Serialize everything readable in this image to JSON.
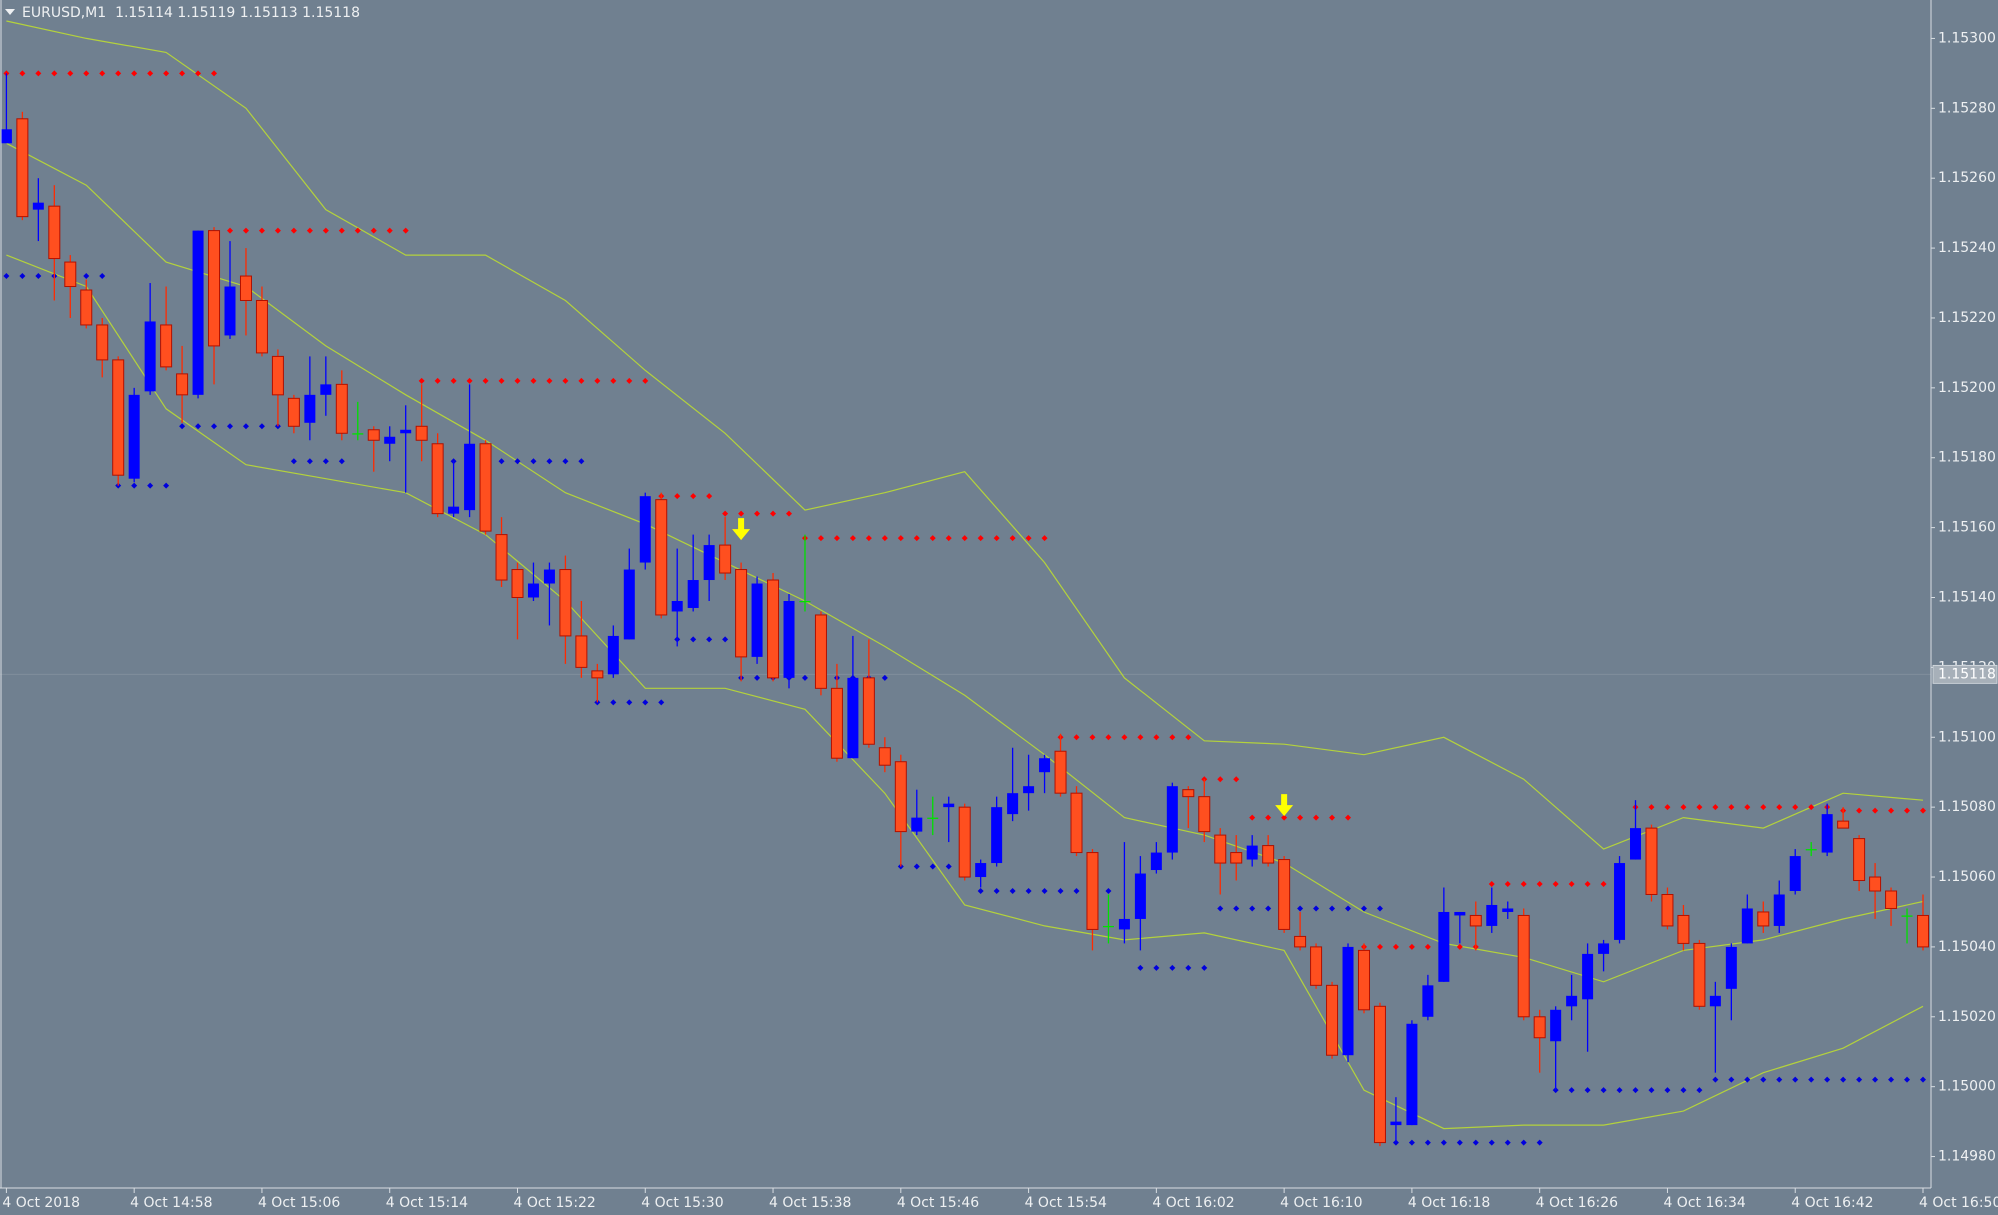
{
  "chart_data": {
    "type": "candlestick",
    "title": "EURUSD,M1  1.15114 1.15119 1.15113 1.15118",
    "xlim": [
      0,
      120
    ],
    "xticks": [
      {
        "value": 0,
        "label": "4 Oct 2018"
      },
      {
        "value": 8,
        "label": "4 Oct 14:58"
      },
      {
        "value": 16,
        "label": "4 Oct 15:06"
      },
      {
        "value": 24,
        "label": "4 Oct 15:14"
      },
      {
        "value": 32,
        "label": "4 Oct 15:22"
      },
      {
        "value": 40,
        "label": "4 Oct 15:30"
      },
      {
        "value": 48,
        "label": "4 Oct 15:38"
      },
      {
        "value": 56,
        "label": "4 Oct 15:46"
      },
      {
        "value": 64,
        "label": "4 Oct 15:54"
      },
      {
        "value": 72,
        "label": "4 Oct 16:02"
      },
      {
        "value": 80,
        "label": "4 Oct 16:10"
      },
      {
        "value": 88,
        "label": "4 Oct 16:18"
      },
      {
        "value": 96,
        "label": "4 Oct 16:26"
      },
      {
        "value": 104,
        "label": "4 Oct 16:34"
      },
      {
        "value": 112,
        "label": "4 Oct 16:42"
      },
      {
        "value": 120,
        "label": "4 Oct 16:50"
      }
    ],
    "ylim": [
      1.14971,
      1.15311
    ],
    "yticks": [
      {
        "value": 1.153,
        "label": "1.15300"
      },
      {
        "value": 1.1528,
        "label": "1.15280"
      },
      {
        "value": 1.1526,
        "label": "1.15260"
      },
      {
        "value": 1.1524,
        "label": "1.15240"
      },
      {
        "value": 1.1522,
        "label": "1.15220"
      },
      {
        "value": 1.152,
        "label": "1.15200"
      },
      {
        "value": 1.1518,
        "label": "1.15180"
      },
      {
        "value": 1.1516,
        "label": "1.15160"
      },
      {
        "value": 1.1514,
        "label": "1.15140"
      },
      {
        "value": 1.1512,
        "label": "1.15120"
      },
      {
        "value": 1.151,
        "label": "1.15100"
      },
      {
        "value": 1.1508,
        "label": "1.15080"
      },
      {
        "value": 1.1506,
        "label": "1.15060"
      },
      {
        "value": 1.1504,
        "label": "1.15040"
      },
      {
        "value": 1.1502,
        "label": "1.15020"
      },
      {
        "value": 1.15,
        "label": "1.15000"
      },
      {
        "value": 1.1498,
        "label": "1.14980"
      }
    ],
    "last_price": 1.15118,
    "up_color": "#0000ff",
    "down_color": "#ff4f1f",
    "doji_color": "#00e000",
    "open": [
      1.1527,
      1.15277,
      1.15251,
      1.15252,
      1.15236,
      1.15228,
      1.15218,
      1.15208,
      1.15174,
      1.15199,
      1.15218,
      1.15204,
      1.15198,
      1.15245,
      1.15215,
      1.15232,
      1.15225,
      1.15209,
      1.15197,
      1.1519,
      1.15198,
      1.15201,
      1.15187,
      1.15188,
      1.15184,
      1.15187,
      1.15189,
      1.15184,
      1.15164,
      1.15165,
      1.15184,
      1.15158,
      1.15148,
      1.1514,
      1.15144,
      1.15148,
      1.15129,
      1.15119,
      1.15118,
      1.15128,
      1.1515,
      1.15168,
      1.15136,
      1.15137,
      1.15145,
      1.15155,
      1.15148,
      1.15123,
      1.15145,
      1.15117,
      1.15139,
      1.15135,
      1.15114,
      1.15094,
      1.15117,
      1.15097,
      1.15093,
      1.15073,
      1.15077,
      1.1508,
      1.1508,
      1.1506,
      1.15064,
      1.15078,
      1.15084,
      1.1509,
      1.15096,
      1.15084,
      1.15067,
      1.15046,
      1.15045,
      1.15048,
      1.15062,
      1.15067,
      1.15085,
      1.15083,
      1.15072,
      1.15067,
      1.15065,
      1.15069,
      1.15065,
      1.15043,
      1.1504,
      1.15029,
      1.15009,
      1.15039,
      1.15023,
      1.14989,
      1.14989,
      1.1502,
      1.1503,
      1.15049,
      1.15049,
      1.15046,
      1.1505,
      1.15049,
      1.1502,
      1.15013,
      1.15023,
      1.15025,
      1.15038,
      1.15042,
      1.15065,
      1.15074,
      1.15055,
      1.15049,
      1.15041,
      1.15023,
      1.15028,
      1.15041,
      1.1505,
      1.15046,
      1.15056,
      1.15068,
      1.15067,
      1.15076,
      1.15071,
      1.1506,
      1.15056,
      1.15049,
      1.15049
    ],
    "high": [
      1.1529,
      1.15279,
      1.1526,
      1.15258,
      1.15238,
      1.15231,
      1.1522,
      1.15209,
      1.152,
      1.1523,
      1.15229,
      1.15212,
      1.15245,
      1.15246,
      1.15242,
      1.1524,
      1.15229,
      1.15211,
      1.15198,
      1.15209,
      1.15209,
      1.15205,
      1.15196,
      1.15189,
      1.15189,
      1.15195,
      1.15201,
      1.15187,
      1.15179,
      1.15201,
      1.15185,
      1.15163,
      1.1515,
      1.1515,
      1.1515,
      1.15152,
      1.15139,
      1.15121,
      1.15132,
      1.15154,
      1.1517,
      1.1517,
      1.15154,
      1.15158,
      1.15158,
      1.15163,
      1.1515,
      1.15146,
      1.15147,
      1.15141,
      1.15158,
      1.15136,
      1.15121,
      1.15129,
      1.15128,
      1.151,
      1.15095,
      1.15085,
      1.15083,
      1.15083,
      1.15081,
      1.15065,
      1.15083,
      1.15097,
      1.15095,
      1.15095,
      1.15101,
      1.15086,
      1.15068,
      1.15055,
      1.1507,
      1.15066,
      1.1507,
      1.15087,
      1.15086,
      1.15088,
      1.15074,
      1.15072,
      1.15072,
      1.15072,
      1.15066,
      1.1505,
      1.15041,
      1.1503,
      1.15041,
      1.15041,
      1.15024,
      1.14997,
      1.15019,
      1.15032,
      1.15057,
      1.1505,
      1.15053,
      1.15057,
      1.15053,
      1.15051,
      1.15022,
      1.15023,
      1.15032,
      1.15041,
      1.15042,
      1.15066,
      1.15082,
      1.15075,
      1.15057,
      1.15052,
      1.15042,
      1.1503,
      1.15041,
      1.15055,
      1.15053,
      1.15059,
      1.15068,
      1.1507,
      1.15081,
      1.1508,
      1.15072,
      1.15064,
      1.15057,
      1.15051,
      1.15055
    ],
    "low": [
      1.1527,
      1.15248,
      1.15242,
      1.15225,
      1.1522,
      1.15217,
      1.15203,
      1.15172,
      1.15173,
      1.15198,
      1.15205,
      1.1519,
      1.15197,
      1.15201,
      1.15214,
      1.15215,
      1.15209,
      1.15189,
      1.15187,
      1.15185,
      1.15192,
      1.15185,
      1.15185,
      1.15176,
      1.15179,
      1.1517,
      1.15179,
      1.15163,
      1.15163,
      1.15163,
      1.15158,
      1.15143,
      1.15128,
      1.15139,
      1.15132,
      1.15121,
      1.15117,
      1.1511,
      1.15117,
      1.15128,
      1.15148,
      1.15134,
      1.15126,
      1.15136,
      1.15139,
      1.15145,
      1.15116,
      1.15121,
      1.15116,
      1.15114,
      1.15136,
      1.15112,
      1.15093,
      1.15094,
      1.15097,
      1.1509,
      1.15063,
      1.15072,
      1.15072,
      1.1507,
      1.15059,
      1.15057,
      1.15063,
      1.15076,
      1.15079,
      1.15084,
      1.15083,
      1.15066,
      1.15039,
      1.15041,
      1.15041,
      1.15039,
      1.15061,
      1.15065,
      1.15074,
      1.1507,
      1.15055,
      1.15059,
      1.15063,
      1.15063,
      1.15044,
      1.15039,
      1.15028,
      1.15008,
      1.15007,
      1.15021,
      1.14983,
      1.14984,
      1.14989,
      1.15019,
      1.1503,
      1.15041,
      1.15039,
      1.15044,
      1.15048,
      1.15019,
      1.15004,
      1.14999,
      1.15019,
      1.1501,
      1.15033,
      1.15041,
      1.15065,
      1.15053,
      1.15045,
      1.15039,
      1.15022,
      1.15004,
      1.15019,
      1.15041,
      1.15044,
      1.15044,
      1.15055,
      1.15066,
      1.15066,
      1.15074,
      1.15056,
      1.15048,
      1.15046,
      1.15041,
      1.15039
    ],
    "close": [
      1.15274,
      1.15249,
      1.15253,
      1.15237,
      1.15229,
      1.15218,
      1.15208,
      1.15175,
      1.15198,
      1.15219,
      1.15206,
      1.15198,
      1.15245,
      1.15212,
      1.15229,
      1.15225,
      1.1521,
      1.15198,
      1.15189,
      1.15198,
      1.15201,
      1.15187,
      1.15187,
      1.15185,
      1.15186,
      1.15188,
      1.15185,
      1.15164,
      1.15166,
      1.15184,
      1.15159,
      1.15145,
      1.1514,
      1.15144,
      1.15148,
      1.15129,
      1.1512,
      1.15117,
      1.15129,
      1.15148,
      1.15169,
      1.15135,
      1.15139,
      1.15145,
      1.15155,
      1.15147,
      1.15123,
      1.15144,
      1.15117,
      1.15139,
      1.15139,
      1.15114,
      1.15094,
      1.15117,
      1.15098,
      1.15092,
      1.15073,
      1.15077,
      1.15077,
      1.15081,
      1.1506,
      1.15064,
      1.1508,
      1.15084,
      1.15086,
      1.15094,
      1.15084,
      1.15067,
      1.15045,
      1.15046,
      1.15048,
      1.15061,
      1.15067,
      1.15086,
      1.15083,
      1.15073,
      1.15064,
      1.15064,
      1.15069,
      1.15064,
      1.15045,
      1.1504,
      1.15029,
      1.15009,
      1.1504,
      1.15022,
      1.14984,
      1.1499,
      1.15018,
      1.15029,
      1.1505,
      1.1505,
      1.15046,
      1.15052,
      1.15051,
      1.1502,
      1.15014,
      1.15022,
      1.15026,
      1.15038,
      1.15041,
      1.15064,
      1.15074,
      1.15055,
      1.15046,
      1.15041,
      1.15023,
      1.15026,
      1.1504,
      1.15051,
      1.15046,
      1.15055,
      1.15066,
      1.15068,
      1.15078,
      1.15074,
      1.15059,
      1.15056,
      1.15051,
      1.15049,
      1.1504
    ],
    "bands": {
      "color": "#b4d23c",
      "index": [
        0,
        5,
        10,
        15,
        20,
        25,
        30,
        35,
        40,
        45,
        50,
        55,
        60,
        65,
        70,
        75,
        80,
        85,
        90,
        95,
        100,
        105,
        110,
        115,
        120
      ],
      "upper": [
        1.15305,
        1.153,
        1.15296,
        1.1528,
        1.15251,
        1.15238,
        1.15238,
        1.15225,
        1.15205,
        1.15187,
        1.15165,
        1.1517,
        1.15176,
        1.1515,
        1.15117,
        1.15099,
        1.15098,
        1.15095,
        1.151,
        1.15088,
        1.15068,
        1.15077,
        1.15074,
        1.15084,
        1.15082
      ],
      "middle": [
        1.1527,
        1.15258,
        1.15236,
        1.15229,
        1.15212,
        1.15198,
        1.15185,
        1.1517,
        1.15161,
        1.1515,
        1.15139,
        1.15126,
        1.15112,
        1.15095,
        1.15077,
        1.15072,
        1.15064,
        1.1505,
        1.15041,
        1.15037,
        1.1503,
        1.15039,
        1.15042,
        1.15048,
        1.15053
      ],
      "lower": [
        1.15238,
        1.15229,
        1.15194,
        1.15178,
        1.15174,
        1.1517,
        1.15158,
        1.15139,
        1.15114,
        1.15114,
        1.15108,
        1.15084,
        1.15052,
        1.15046,
        1.15042,
        1.15044,
        1.15039,
        1.14999,
        1.14988,
        1.14989,
        1.14989,
        1.14993,
        1.15004,
        1.15011,
        1.15023
      ]
    },
    "resistance": {
      "color": "#ff0000",
      "levels": [
        {
          "from": 0,
          "to": 13,
          "value": 1.1529
        },
        {
          "from": 14,
          "to": 25,
          "value": 1.15245
        },
        {
          "from": 26,
          "to": 40,
          "value": 1.15202
        },
        {
          "from": 41,
          "to": 44,
          "value": 1.15169
        },
        {
          "from": 45,
          "to": 49,
          "value": 1.15164
        },
        {
          "from": 50,
          "to": 65,
          "value": 1.15157
        },
        {
          "from": 66,
          "to": 74,
          "value": 1.151
        },
        {
          "from": 75,
          "to": 77,
          "value": 1.15088
        },
        {
          "from": 78,
          "to": 84,
          "value": 1.15077
        },
        {
          "from": 85,
          "to": 92,
          "value": 1.1504
        },
        {
          "from": 93,
          "to": 100,
          "value": 1.15058
        },
        {
          "from": 102,
          "to": 114,
          "value": 1.1508
        },
        {
          "from": 115,
          "to": 120,
          "value": 1.15079
        }
      ]
    },
    "support": {
      "color": "#0000dd",
      "levels": [
        {
          "from": 0,
          "to": 6,
          "value": 1.15232
        },
        {
          "from": 7,
          "to": 10,
          "value": 1.15172
        },
        {
          "from": 11,
          "to": 17,
          "value": 1.15189
        },
        {
          "from": 18,
          "to": 21,
          "value": 1.15179
        },
        {
          "from": 28,
          "to": 36,
          "value": 1.15179
        },
        {
          "from": 37,
          "to": 41,
          "value": 1.1511
        },
        {
          "from": 42,
          "to": 45,
          "value": 1.15128
        },
        {
          "from": 46,
          "to": 55,
          "value": 1.15117
        },
        {
          "from": 56,
          "to": 59,
          "value": 1.15063
        },
        {
          "from": 61,
          "to": 69,
          "value": 1.15056
        },
        {
          "from": 71,
          "to": 75,
          "value": 1.15034
        },
        {
          "from": 76,
          "to": 86,
          "value": 1.15051
        },
        {
          "from": 87,
          "to": 96,
          "value": 1.14984
        },
        {
          "from": 97,
          "to": 106,
          "value": 1.14999
        },
        {
          "from": 107,
          "to": 120,
          "value": 1.15002
        }
      ]
    },
    "arrows": {
      "color": "#ffff00",
      "points": [
        {
          "index": 46,
          "value": 1.15159
        },
        {
          "index": 80,
          "value": 1.1508
        }
      ]
    }
  }
}
